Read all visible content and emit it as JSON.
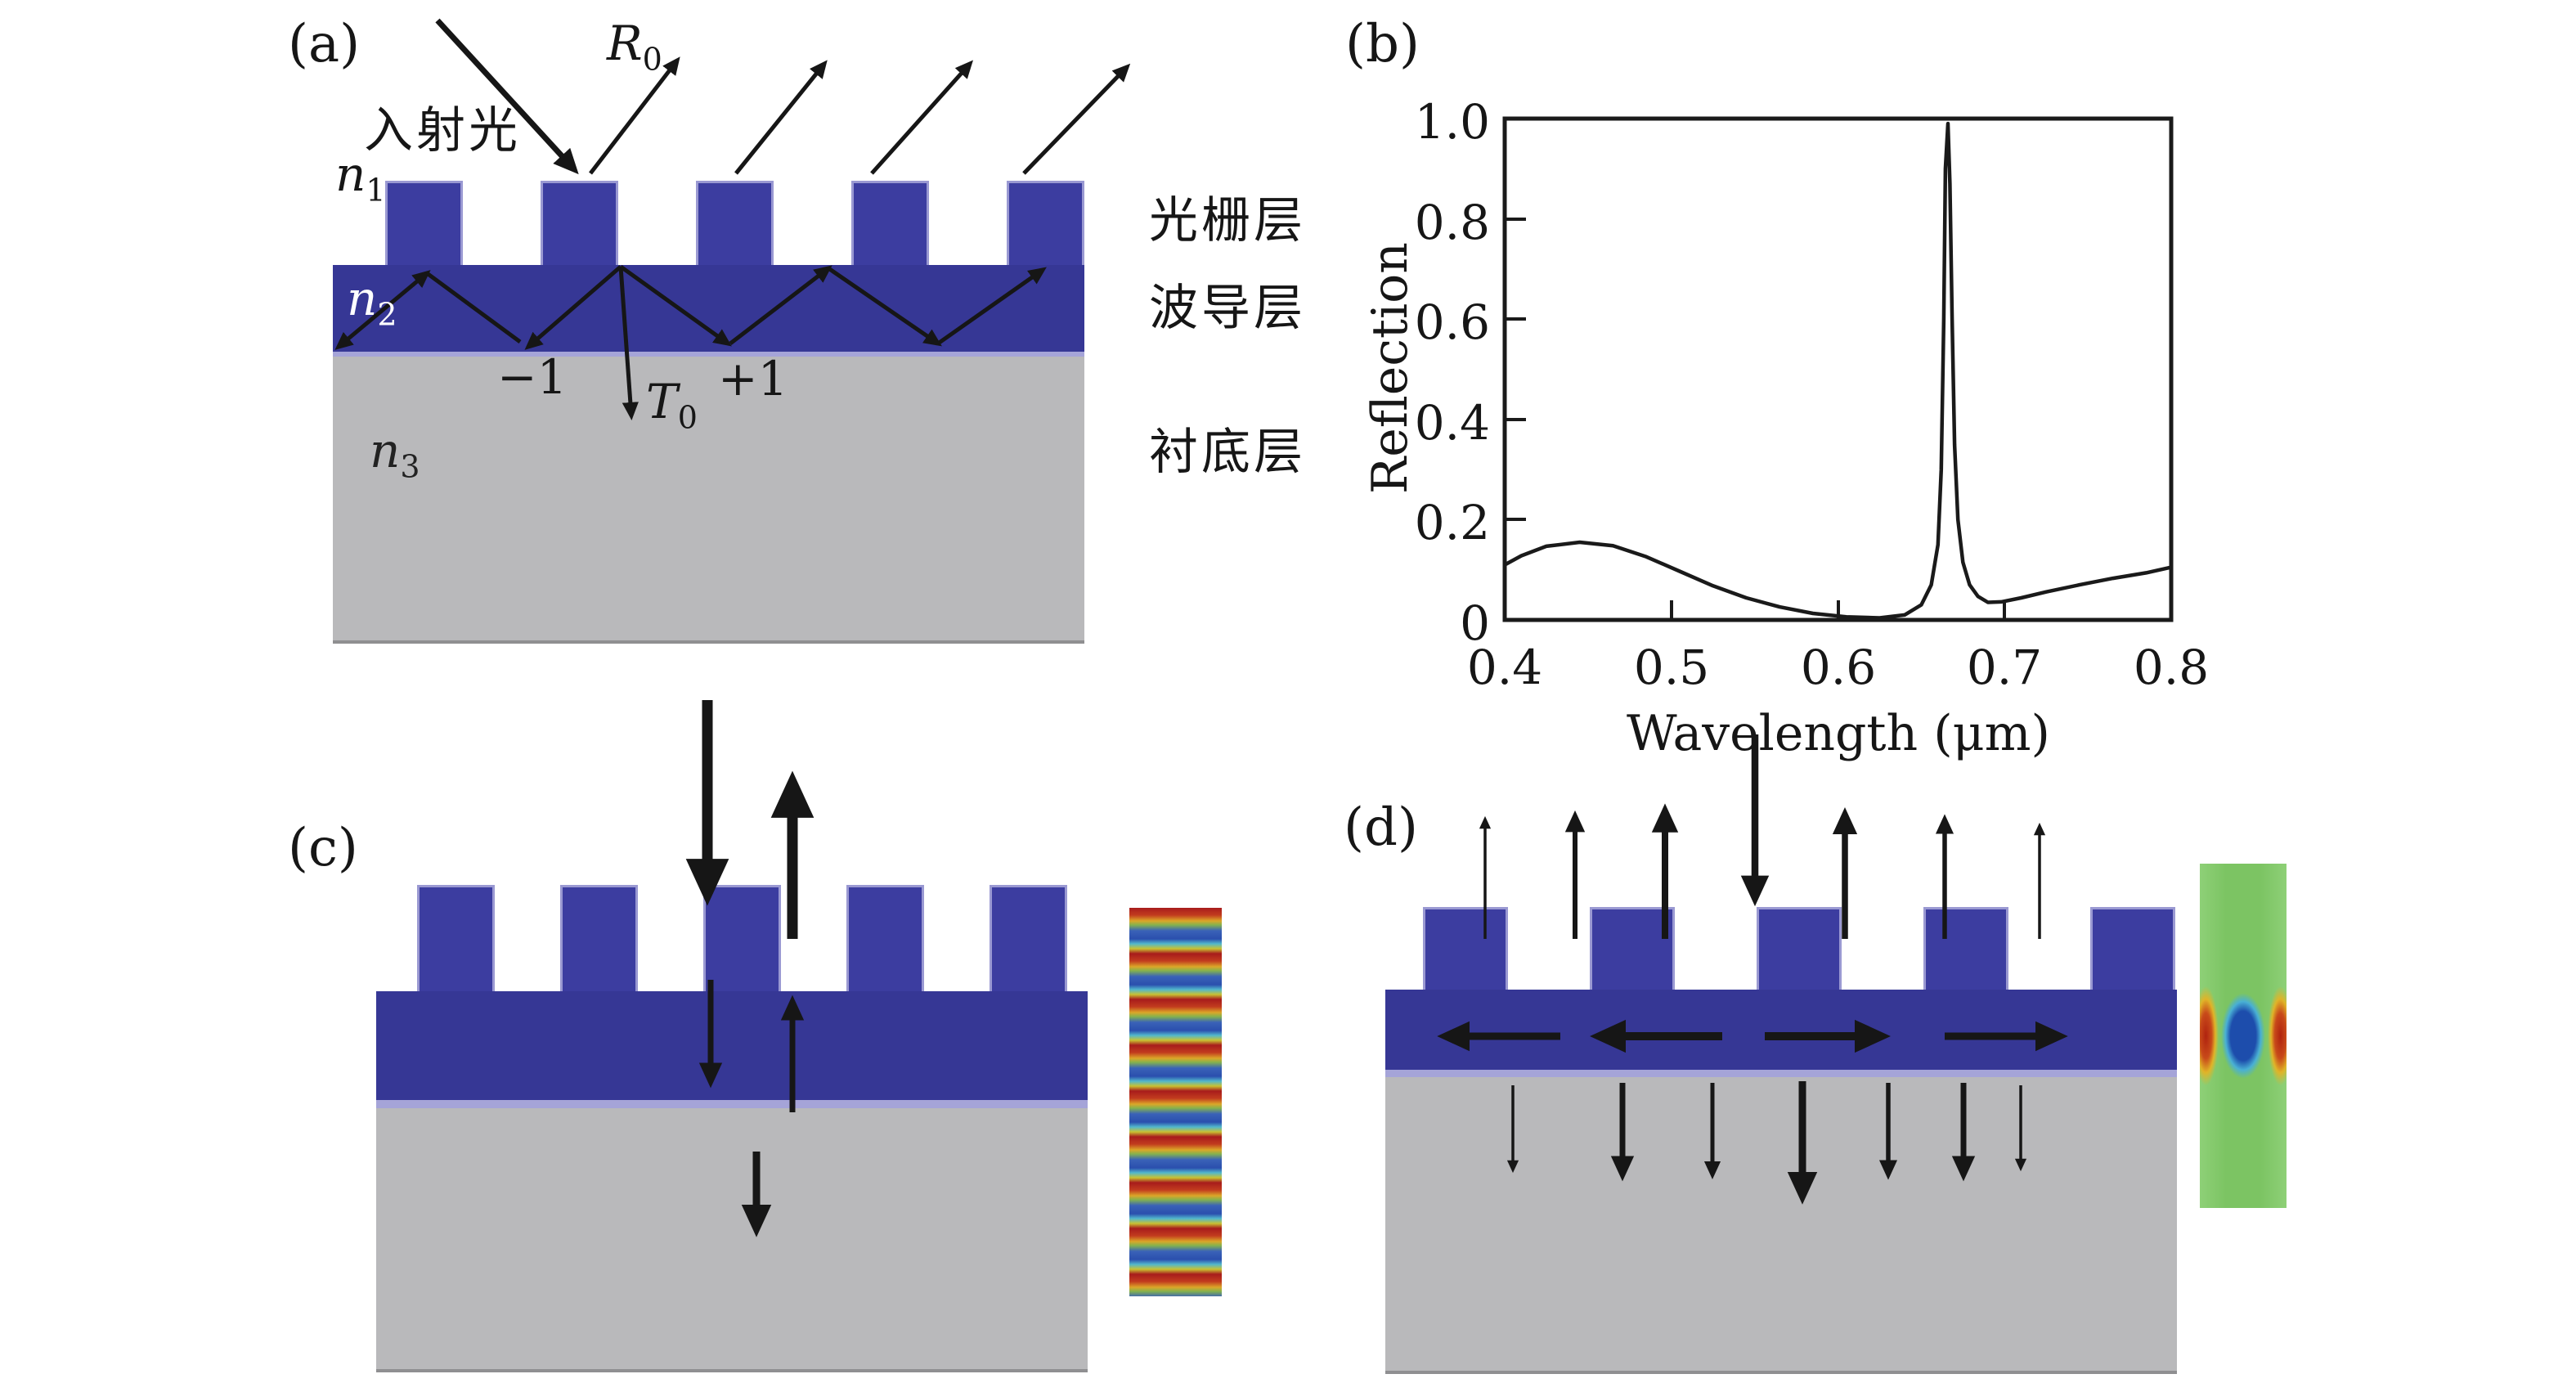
{
  "figure_type": "guided-mode-resonance-grating-figure",
  "panel_a": {
    "tag": "(a)",
    "incident_label": "入射光",
    "r0": {
      "base": "R",
      "sub": "0"
    },
    "t0": {
      "base": "T",
      "sub": "0"
    },
    "n1": {
      "base": "n",
      "sub": "1"
    },
    "n2": {
      "base": "n",
      "sub": "2"
    },
    "n3": {
      "base": "n",
      "sub": "3"
    },
    "order_minus1": "−1",
    "order_plus1": "+1",
    "layer_grating": "光栅层",
    "layer_waveguide": "波导层",
    "layer_substrate": "衬底层"
  },
  "panel_b": {
    "tag": "(b)",
    "ylabel": "Reflection",
    "xlabel": "Wavelength (μm)",
    "ytick_labels": [
      "1.0",
      "0.8",
      "0.6",
      "0.4",
      "0.2",
      "0"
    ],
    "xtick_labels": [
      "0.4",
      "0.5",
      "0.6",
      "0.7",
      "0.8"
    ]
  },
  "panel_c": {
    "tag": "(c)"
  },
  "panel_d": {
    "tag": "(d)"
  },
  "colors": {
    "grating_blue": "#3c3da0",
    "waveguide_blue": "#363795",
    "substrate_gray": "#b9b9bb",
    "edge_lavender": "#a5a4d8",
    "curve_black": "#1a1a1a",
    "mode_green": "#7cc463",
    "mode_red": "#b0230f",
    "mode_blue": "#1d4dac"
  },
  "chart_data": {
    "type": "line",
    "title": "",
    "xlabel": "Wavelength (μm)",
    "ylabel": "Reflection",
    "xlim": [
      0.4,
      0.8
    ],
    "ylim": [
      0,
      1.0
    ],
    "xticks": [
      0.4,
      0.5,
      0.6,
      0.7,
      0.8
    ],
    "yticks": [
      0,
      0.2,
      0.4,
      0.6,
      0.8,
      1.0
    ],
    "grid": false,
    "legend": false,
    "peak_wavelength_um": 0.664,
    "peak_reflection": 0.99,
    "series": [
      {
        "name": "Reflection",
        "x": [
          0.4,
          0.41,
          0.425,
          0.445,
          0.465,
          0.485,
          0.505,
          0.525,
          0.545,
          0.565,
          0.585,
          0.605,
          0.625,
          0.64,
          0.65,
          0.656,
          0.66,
          0.662,
          0.6635,
          0.6645,
          0.666,
          0.6672,
          0.6685,
          0.67,
          0.672,
          0.675,
          0.679,
          0.684,
          0.69,
          0.698,
          0.71,
          0.725,
          0.745,
          0.765,
          0.785,
          0.8
        ],
        "y": [
          0.11,
          0.128,
          0.147,
          0.155,
          0.148,
          0.126,
          0.097,
          0.068,
          0.044,
          0.026,
          0.013,
          0.006,
          0.004,
          0.01,
          0.03,
          0.07,
          0.15,
          0.3,
          0.6,
          0.9,
          0.99,
          0.87,
          0.6,
          0.35,
          0.2,
          0.115,
          0.07,
          0.047,
          0.035,
          0.036,
          0.044,
          0.056,
          0.07,
          0.083,
          0.094,
          0.105
        ]
      }
    ]
  }
}
